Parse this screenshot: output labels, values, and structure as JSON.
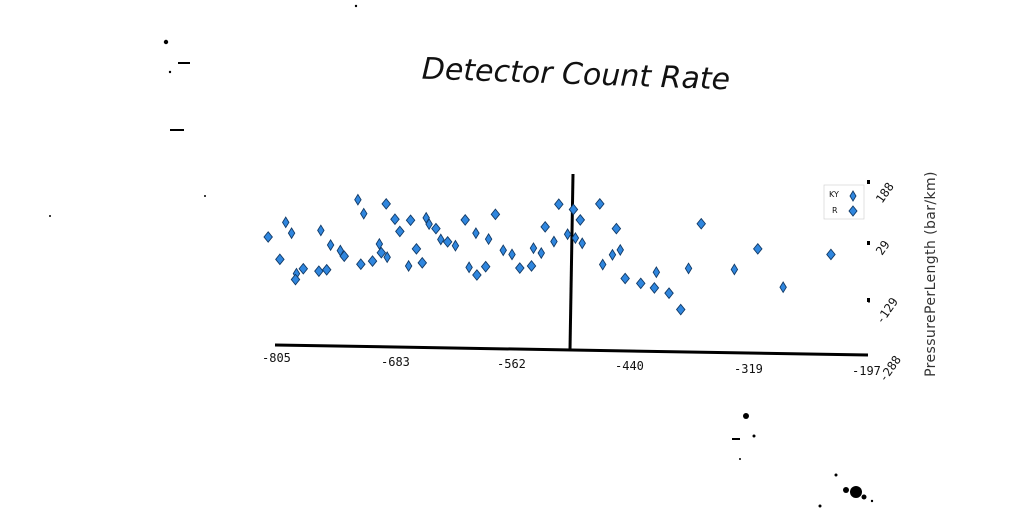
{
  "chart_data": {
    "type": "scatter",
    "title": "Detector Count Rate",
    "xlabel": "",
    "ylabel": "PressurePerLength (bar/km)",
    "xlim": [
      -805,
      -197
    ],
    "ylim": [
      -288,
      188
    ],
    "x_ticks": [
      -805,
      -683,
      -562,
      -440,
      -319,
      -197
    ],
    "y_ticks": [
      188,
      29,
      -129,
      -288
    ],
    "y_tick_labels": [
      "188",
      "29",
      "-129",
      "-288"
    ],
    "vline_x": -504,
    "grid": false,
    "legend_position": "top-right",
    "marker": "diamond",
    "marker_color": "#2f86de",
    "series": [
      {
        "name": "KY",
        "points": [
          [
            -794,
            78
          ],
          [
            -788,
            47
          ],
          [
            -783,
            -69
          ],
          [
            -758,
            55
          ],
          [
            -748,
            13
          ],
          [
            -738,
            -3
          ],
          [
            -720,
            143
          ],
          [
            -714,
            103
          ],
          [
            -698,
            16
          ],
          [
            -690,
            -22
          ],
          [
            -668,
            -47
          ],
          [
            -650,
            91
          ],
          [
            -647,
            73
          ],
          [
            -635,
            29
          ],
          [
            -620,
            11
          ],
          [
            -606,
            -51
          ],
          [
            -599,
            47
          ],
          [
            -586,
            30
          ],
          [
            -571,
            -2
          ],
          [
            -562,
            -14
          ],
          [
            -540,
            4
          ],
          [
            -532,
            -10
          ],
          [
            -519,
            23
          ],
          [
            -505,
            44
          ],
          [
            -497,
            33
          ],
          [
            -490,
            18
          ],
          [
            -469,
            -43
          ],
          [
            -459,
            -15
          ],
          [
            -451,
            -1
          ],
          [
            -414,
            -65
          ],
          [
            -381,
            -54
          ],
          [
            -334,
            -57
          ],
          [
            -284,
            -108
          ]
        ]
      },
      {
        "name": "R",
        "points": [
          [
            -812,
            36
          ],
          [
            -800,
            -28
          ],
          [
            -784,
            -86
          ],
          [
            -776,
            -55
          ],
          [
            -760,
            -62
          ],
          [
            -752,
            -58
          ],
          [
            -734,
            -19
          ],
          [
            -717,
            -42
          ],
          [
            -705,
            -33
          ],
          [
            -696,
            -9
          ],
          [
            -691,
            131
          ],
          [
            -682,
            87
          ],
          [
            -677,
            52
          ],
          [
            -666,
            84
          ],
          [
            -660,
            2
          ],
          [
            -654,
            -38
          ],
          [
            -640,
            60
          ],
          [
            -628,
            22
          ],
          [
            -610,
            85
          ],
          [
            -598,
            -73
          ],
          [
            -589,
            -49
          ],
          [
            -579,
            101
          ],
          [
            -554,
            -53
          ],
          [
            -542,
            -47
          ],
          [
            -528,
            65
          ],
          [
            -514,
            130
          ],
          [
            -499,
            115
          ],
          [
            -492,
            85
          ],
          [
            -472,
            131
          ],
          [
            -455,
            60
          ],
          [
            -446,
            -83
          ],
          [
            -430,
            -97
          ],
          [
            -416,
            -110
          ],
          [
            -401,
            -125
          ],
          [
            -389,
            -172
          ],
          [
            -368,
            74
          ],
          [
            -310,
            2
          ],
          [
            -235,
            -14
          ]
        ]
      }
    ]
  },
  "colors": {
    "axis": "#000000",
    "marker_fill": "#2f86de",
    "marker_stroke": "#123a66",
    "text": "#111111",
    "background": "#ffffff"
  }
}
